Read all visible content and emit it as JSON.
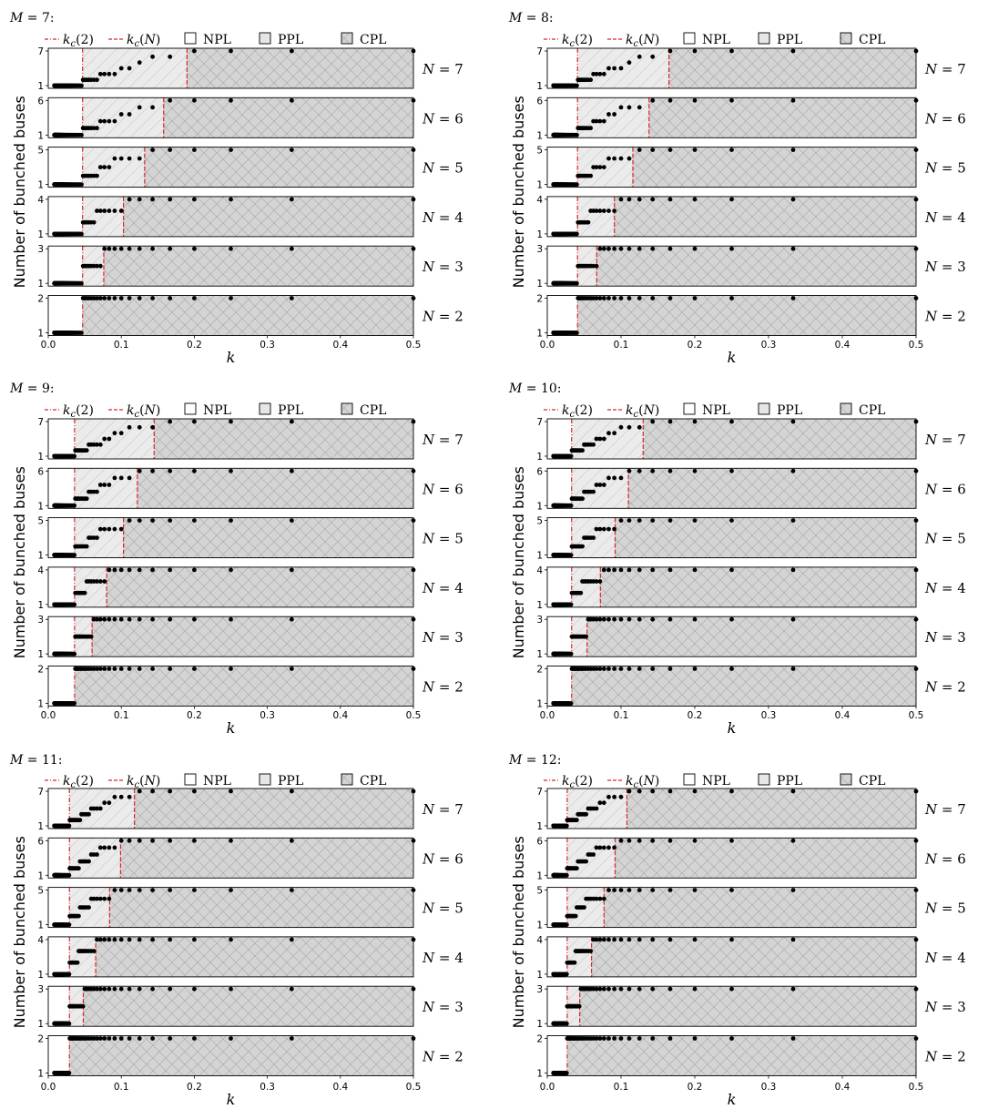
{
  "chart_data": {
    "type": "scatter",
    "ylabel": "Number of bunched buses",
    "xlabel": "k",
    "xlim": [
      0,
      0.5
    ],
    "xticks": [
      "0.0",
      "0.1",
      "0.2",
      "0.3",
      "0.4",
      "0.5"
    ],
    "legend": {
      "placement": "top",
      "items": [
        {
          "label": "k_c(2)",
          "style": "dash-dot",
          "color": "#d62728"
        },
        {
          "label": "k_c(N)",
          "style": "dashed",
          "color": "#d62728"
        },
        {
          "label": "NPL",
          "style": "box-white"
        },
        {
          "label": "PPL",
          "style": "box-light-gray"
        },
        {
          "label": "CPL",
          "style": "box-gray-cross-hatch"
        }
      ]
    },
    "colors": {
      "npl": "#ffffff",
      "ppl": "#ebebeb",
      "cpl": "#d4d4d4",
      "line": "#d62728",
      "points": "#000000"
    },
    "panels": [
      {
        "title": "M = 7:",
        "M": 7,
        "rows": [
          {
            "label": "N = 7",
            "N": 7,
            "kc2": 0.047,
            "kcN": 0.19
          },
          {
            "label": "N = 6",
            "N": 6,
            "kc2": 0.047,
            "kcN": 0.158
          },
          {
            "label": "N = 5",
            "N": 5,
            "kc2": 0.047,
            "kcN": 0.132
          },
          {
            "label": "N = 4",
            "N": 4,
            "kc2": 0.047,
            "kcN": 0.103
          },
          {
            "label": "N = 3",
            "N": 3,
            "kc2": 0.047,
            "kcN": 0.076
          },
          {
            "label": "N = 2",
            "N": 2,
            "kc2": 0.047,
            "kcN": 0.047
          }
        ]
      },
      {
        "title": "M = 8:",
        "M": 8,
        "rows": [
          {
            "label": "N = 7",
            "N": 7,
            "kc2": 0.041,
            "kcN": 0.165
          },
          {
            "label": "N = 6",
            "N": 6,
            "kc2": 0.041,
            "kcN": 0.138
          },
          {
            "label": "N = 5",
            "N": 5,
            "kc2": 0.041,
            "kcN": 0.116
          },
          {
            "label": "N = 4",
            "N": 4,
            "kc2": 0.041,
            "kcN": 0.091
          },
          {
            "label": "N = 3",
            "N": 3,
            "kc2": 0.041,
            "kcN": 0.067
          },
          {
            "label": "N = 2",
            "N": 2,
            "kc2": 0.041,
            "kcN": 0.041
          }
        ]
      },
      {
        "title": "M = 9:",
        "M": 9,
        "rows": [
          {
            "label": "N = 7",
            "N": 7,
            "kc2": 0.036,
            "kcN": 0.145
          },
          {
            "label": "N = 6",
            "N": 6,
            "kc2": 0.036,
            "kcN": 0.122
          },
          {
            "label": "N = 5",
            "N": 5,
            "kc2": 0.036,
            "kcN": 0.103
          },
          {
            "label": "N = 4",
            "N": 4,
            "kc2": 0.036,
            "kcN": 0.08
          },
          {
            "label": "N = 3",
            "N": 3,
            "kc2": 0.036,
            "kcN": 0.06
          },
          {
            "label": "N = 2",
            "N": 2,
            "kc2": 0.036,
            "kcN": 0.036
          }
        ]
      },
      {
        "title": "M = 10:",
        "M": 10,
        "rows": [
          {
            "label": "N = 7",
            "N": 7,
            "kc2": 0.033,
            "kcN": 0.13
          },
          {
            "label": "N = 6",
            "N": 6,
            "kc2": 0.033,
            "kcN": 0.11
          },
          {
            "label": "N = 5",
            "N": 5,
            "kc2": 0.033,
            "kcN": 0.092
          },
          {
            "label": "N = 4",
            "N": 4,
            "kc2": 0.033,
            "kcN": 0.072
          },
          {
            "label": "N = 3",
            "N": 3,
            "kc2": 0.033,
            "kcN": 0.054
          },
          {
            "label": "N = 2",
            "N": 2,
            "kc2": 0.033,
            "kcN": 0.033
          }
        ]
      },
      {
        "title": "M = 11:",
        "M": 11,
        "rows": [
          {
            "label": "N = 7",
            "N": 7,
            "kc2": 0.029,
            "kcN": 0.118
          },
          {
            "label": "N = 6",
            "N": 6,
            "kc2": 0.029,
            "kcN": 0.099
          },
          {
            "label": "N = 5",
            "N": 5,
            "kc2": 0.029,
            "kcN": 0.084
          },
          {
            "label": "N = 4",
            "N": 4,
            "kc2": 0.029,
            "kcN": 0.065
          },
          {
            "label": "N = 3",
            "N": 3,
            "kc2": 0.029,
            "kcN": 0.048
          },
          {
            "label": "N = 2",
            "N": 2,
            "kc2": 0.029,
            "kcN": 0.029
          }
        ]
      },
      {
        "title": "M = 12:",
        "M": 12,
        "rows": [
          {
            "label": "N = 7",
            "N": 7,
            "kc2": 0.027,
            "kcN": 0.108
          },
          {
            "label": "N = 6",
            "N": 6,
            "kc2": 0.027,
            "kcN": 0.092
          },
          {
            "label": "N = 5",
            "N": 5,
            "kc2": 0.027,
            "kcN": 0.077
          },
          {
            "label": "N = 4",
            "N": 4,
            "kc2": 0.027,
            "kcN": 0.06
          },
          {
            "label": "N = 3",
            "N": 3,
            "kc2": 0.027,
            "kcN": 0.044
          },
          {
            "label": "N = 2",
            "N": 2,
            "kc2": 0.027,
            "kcN": 0.027
          }
        ]
      }
    ]
  }
}
